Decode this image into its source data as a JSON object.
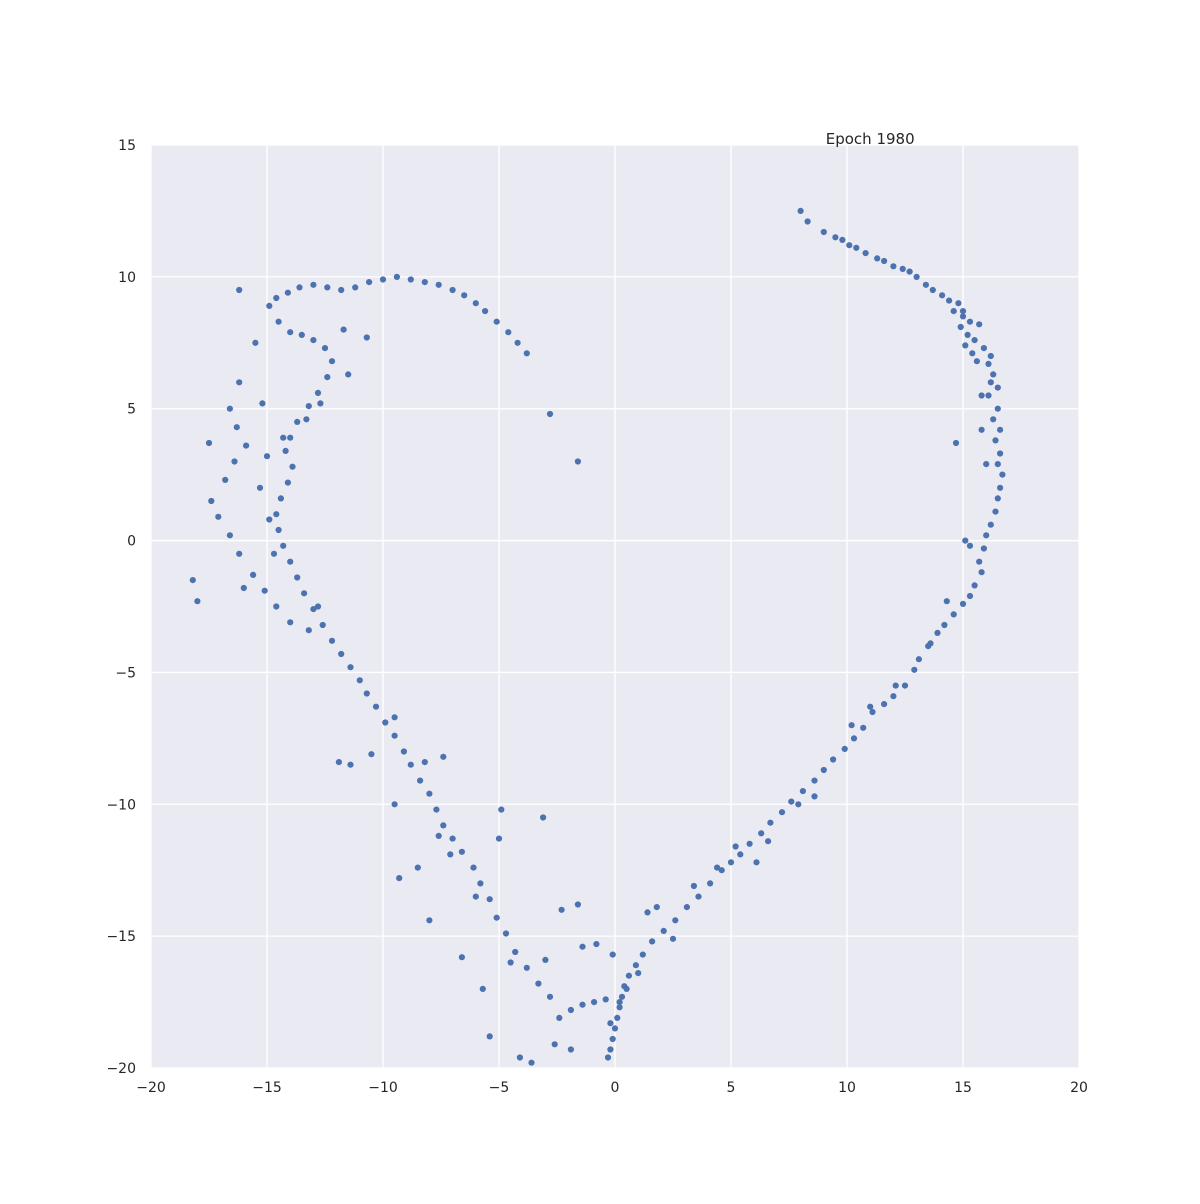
{
  "chart_data": {
    "type": "scatter",
    "title": "Epoch 1980",
    "xlabel": "",
    "ylabel": "",
    "xlim": [
      -20,
      20
    ],
    "ylim": [
      -20,
      15
    ],
    "xticks": [
      -20,
      -15,
      -10,
      -5,
      0,
      5,
      10,
      15,
      20
    ],
    "yticks": [
      -20,
      -15,
      -10,
      -5,
      0,
      5,
      10,
      15
    ],
    "xtick_labels": [
      "−20",
      "−15",
      "−10",
      "−5",
      "0",
      "5",
      "10",
      "15",
      "20"
    ],
    "ytick_labels": [
      "−20",
      "−15",
      "−10",
      "−5",
      "0",
      "5",
      "10",
      "15"
    ],
    "grid": true,
    "background": "#eaeaf2",
    "marker_color": "#4c72b0",
    "series": [
      {
        "points": [
          [
            8.0,
            12.5
          ],
          [
            8.3,
            12.1
          ],
          [
            9.0,
            11.7
          ],
          [
            9.5,
            11.5
          ],
          [
            9.8,
            11.4
          ],
          [
            10.1,
            11.2
          ],
          [
            10.4,
            11.1
          ],
          [
            10.8,
            10.9
          ],
          [
            11.3,
            10.7
          ],
          [
            11.6,
            10.6
          ],
          [
            12.0,
            10.4
          ],
          [
            12.4,
            10.3
          ],
          [
            12.7,
            10.2
          ],
          [
            13.0,
            10.0
          ],
          [
            13.4,
            9.7
          ],
          [
            13.7,
            9.5
          ],
          [
            14.1,
            9.3
          ],
          [
            14.4,
            9.1
          ],
          [
            14.8,
            9.0
          ],
          [
            14.6,
            8.7
          ],
          [
            15.0,
            8.5
          ],
          [
            15.3,
            8.3
          ],
          [
            15.7,
            8.2
          ],
          [
            14.9,
            8.1
          ],
          [
            15.2,
            7.8
          ],
          [
            15.5,
            7.6
          ],
          [
            15.9,
            7.3
          ],
          [
            16.2,
            7.0
          ],
          [
            15.4,
            7.1
          ],
          [
            16.1,
            6.7
          ],
          [
            16.3,
            6.3
          ],
          [
            16.5,
            5.8
          ],
          [
            16.1,
            5.5
          ],
          [
            16.5,
            5.0
          ],
          [
            16.3,
            4.6
          ],
          [
            16.6,
            4.2
          ],
          [
            16.4,
            3.8
          ],
          [
            16.6,
            3.3
          ],
          [
            16.5,
            2.9
          ],
          [
            16.7,
            2.5
          ],
          [
            16.6,
            2.0
          ],
          [
            16.5,
            1.6
          ],
          [
            16.4,
            1.1
          ],
          [
            16.2,
            0.6
          ],
          [
            16.0,
            0.2
          ],
          [
            15.9,
            -0.3
          ],
          [
            15.7,
            -0.8
          ],
          [
            15.8,
            -1.2
          ],
          [
            15.5,
            -1.7
          ],
          [
            15.3,
            -2.1
          ],
          [
            15.0,
            -2.4
          ],
          [
            14.6,
            -2.8
          ],
          [
            14.2,
            -3.2
          ],
          [
            13.9,
            -3.5
          ],
          [
            13.5,
            -4.0
          ],
          [
            13.1,
            -4.5
          ],
          [
            12.9,
            -4.9
          ],
          [
            12.5,
            -5.5
          ],
          [
            12.0,
            -5.9
          ],
          [
            11.6,
            -6.2
          ],
          [
            11.1,
            -6.5
          ],
          [
            10.7,
            -7.1
          ],
          [
            10.3,
            -7.5
          ],
          [
            9.9,
            -7.9
          ],
          [
            9.4,
            -8.3
          ],
          [
            9.0,
            -8.7
          ],
          [
            8.6,
            -9.1
          ],
          [
            8.1,
            -9.5
          ],
          [
            7.6,
            -9.9
          ],
          [
            7.2,
            -10.3
          ],
          [
            6.7,
            -10.7
          ],
          [
            6.3,
            -11.1
          ],
          [
            5.8,
            -11.5
          ],
          [
            5.4,
            -11.9
          ],
          [
            5.0,
            -12.2
          ],
          [
            4.6,
            -12.5
          ],
          [
            4.1,
            -13.0
          ],
          [
            3.6,
            -13.5
          ],
          [
            3.1,
            -13.9
          ],
          [
            2.6,
            -14.4
          ],
          [
            2.1,
            -14.8
          ],
          [
            1.6,
            -15.2
          ],
          [
            1.2,
            -15.7
          ],
          [
            0.9,
            -16.1
          ],
          [
            0.6,
            -16.5
          ],
          [
            0.4,
            -16.9
          ],
          [
            0.3,
            -17.3
          ],
          [
            0.2,
            -17.7
          ],
          [
            0.1,
            -18.1
          ],
          [
            0.0,
            -18.5
          ],
          [
            -0.1,
            -18.9
          ],
          [
            -0.2,
            -19.3
          ],
          [
            -0.3,
            -19.6
          ],
          [
            0.5,
            -17.0
          ],
          [
            0.2,
            -17.5
          ],
          [
            -0.2,
            -18.3
          ],
          [
            -0.4,
            -17.4
          ],
          [
            -0.9,
            -17.5
          ],
          [
            -1.4,
            -17.6
          ],
          [
            -1.9,
            -17.8
          ],
          [
            -2.4,
            -18.1
          ],
          [
            -2.8,
            -17.3
          ],
          [
            -3.3,
            -16.8
          ],
          [
            -3.8,
            -16.2
          ],
          [
            -4.3,
            -15.6
          ],
          [
            -4.7,
            -14.9
          ],
          [
            -5.1,
            -14.3
          ],
          [
            -5.4,
            -13.6
          ],
          [
            -5.8,
            -13.0
          ],
          [
            -6.1,
            -12.4
          ],
          [
            -6.6,
            -11.8
          ],
          [
            -7.0,
            -11.3
          ],
          [
            -7.4,
            -10.8
          ],
          [
            -7.7,
            -10.2
          ],
          [
            -8.0,
            -9.6
          ],
          [
            -8.4,
            -9.1
          ],
          [
            -8.8,
            -8.5
          ],
          [
            -9.1,
            -8.0
          ],
          [
            -9.5,
            -7.4
          ],
          [
            -9.9,
            -6.9
          ],
          [
            -10.3,
            -6.3
          ],
          [
            -10.7,
            -5.8
          ],
          [
            -11.0,
            -5.3
          ],
          [
            -11.4,
            -4.8
          ],
          [
            -11.8,
            -4.3
          ],
          [
            -12.2,
            -3.8
          ],
          [
            -12.6,
            -3.2
          ],
          [
            -13.0,
            -2.6
          ],
          [
            -13.4,
            -2.0
          ],
          [
            -13.7,
            -1.4
          ],
          [
            -14.0,
            -0.8
          ],
          [
            -14.3,
            -0.2
          ],
          [
            -14.5,
            0.4
          ],
          [
            -14.6,
            1.0
          ],
          [
            -14.4,
            1.6
          ],
          [
            -14.1,
            2.2
          ],
          [
            -13.9,
            2.8
          ],
          [
            -14.2,
            3.4
          ],
          [
            -14.0,
            3.9
          ],
          [
            -13.7,
            4.5
          ],
          [
            -13.2,
            5.1
          ],
          [
            -12.8,
            5.6
          ],
          [
            -12.4,
            6.2
          ],
          [
            -12.2,
            6.8
          ],
          [
            -12.5,
            7.3
          ],
          [
            -13.0,
            7.6
          ],
          [
            -13.5,
            7.8
          ],
          [
            -14.0,
            7.9
          ],
          [
            -14.5,
            8.3
          ],
          [
            -14.9,
            8.9
          ],
          [
            -14.6,
            9.2
          ],
          [
            -14.1,
            9.4
          ],
          [
            -13.6,
            9.6
          ],
          [
            -13.0,
            9.7
          ],
          [
            -12.4,
            9.6
          ],
          [
            -11.8,
            9.5
          ],
          [
            -11.2,
            9.6
          ],
          [
            -10.6,
            9.8
          ],
          [
            -10.0,
            9.9
          ],
          [
            -9.4,
            10.0
          ],
          [
            -8.8,
            9.9
          ],
          [
            -8.2,
            9.8
          ],
          [
            -7.6,
            9.7
          ],
          [
            -7.0,
            9.5
          ],
          [
            -6.5,
            9.3
          ],
          [
            -6.0,
            9.0
          ],
          [
            -5.6,
            8.7
          ],
          [
            -5.1,
            8.3
          ],
          [
            -4.6,
            7.9
          ],
          [
            -4.2,
            7.5
          ],
          [
            -3.8,
            7.1
          ],
          [
            -2.8,
            4.8
          ],
          [
            -1.6,
            3.0
          ],
          [
            -11.7,
            8.0
          ],
          [
            -10.7,
            7.7
          ],
          [
            -11.5,
            6.3
          ],
          [
            -12.7,
            5.2
          ],
          [
            -13.3,
            4.6
          ],
          [
            -15.2,
            5.2
          ],
          [
            -16.2,
            6.0
          ],
          [
            -16.6,
            5.0
          ],
          [
            -16.3,
            4.3
          ],
          [
            -15.9,
            3.6
          ],
          [
            -16.4,
            3.0
          ],
          [
            -16.8,
            2.3
          ],
          [
            -17.4,
            1.5
          ],
          [
            -17.1,
            0.9
          ],
          [
            -16.6,
            0.2
          ],
          [
            -16.2,
            -0.5
          ],
          [
            -15.6,
            -1.3
          ],
          [
            -15.1,
            -1.9
          ],
          [
            -14.7,
            -0.5
          ],
          [
            -14.9,
            0.8
          ],
          [
            -15.3,
            2.0
          ],
          [
            -15.0,
            3.2
          ],
          [
            -14.3,
            3.9
          ],
          [
            -17.5,
            3.7
          ],
          [
            -16.2,
            9.5
          ],
          [
            -15.5,
            7.5
          ],
          [
            -18.2,
            -1.5
          ],
          [
            -18.0,
            -2.3
          ],
          [
            -16.0,
            -1.8
          ],
          [
            -14.6,
            -2.5
          ],
          [
            -14.0,
            -3.1
          ],
          [
            -13.2,
            -3.4
          ],
          [
            -12.8,
            -2.5
          ],
          [
            -11.9,
            -8.4
          ],
          [
            -11.4,
            -8.5
          ],
          [
            -10.5,
            -8.1
          ],
          [
            -9.5,
            -10.0
          ],
          [
            -9.3,
            -12.8
          ],
          [
            -8.0,
            -14.4
          ],
          [
            -6.6,
            -15.8
          ],
          [
            -5.7,
            -17.0
          ],
          [
            -5.4,
            -18.8
          ],
          [
            -4.1,
            -19.6
          ],
          [
            -3.6,
            -19.8
          ],
          [
            -2.6,
            -19.1
          ],
          [
            -1.9,
            -19.3
          ],
          [
            -4.9,
            -10.2
          ],
          [
            -5.0,
            -11.3
          ],
          [
            -3.1,
            -10.5
          ],
          [
            -2.3,
            -14.0
          ],
          [
            -1.6,
            -13.8
          ],
          [
            -7.4,
            -8.2
          ],
          [
            -7.6,
            -11.2
          ],
          [
            -8.5,
            -12.4
          ],
          [
            -9.5,
            -6.7
          ],
          [
            -8.2,
            -8.4
          ],
          [
            -7.1,
            -11.9
          ],
          [
            -6.0,
            -13.5
          ],
          [
            -4.5,
            -16.0
          ],
          [
            -3.0,
            -15.9
          ],
          [
            -1.4,
            -15.4
          ],
          [
            -0.8,
            -15.3
          ],
          [
            -0.1,
            -15.7
          ],
          [
            1.0,
            -16.4
          ],
          [
            1.4,
            -14.1
          ],
          [
            1.8,
            -13.9
          ],
          [
            2.5,
            -15.1
          ],
          [
            3.4,
            -13.1
          ],
          [
            4.4,
            -12.4
          ],
          [
            5.2,
            -11.6
          ],
          [
            6.1,
            -12.2
          ],
          [
            6.6,
            -11.4
          ],
          [
            7.9,
            -10.0
          ],
          [
            8.6,
            -9.7
          ],
          [
            10.2,
            -7.0
          ],
          [
            11.0,
            -6.3
          ],
          [
            12.1,
            -5.5
          ],
          [
            13.6,
            -3.9
          ],
          [
            14.3,
            -2.3
          ],
          [
            15.1,
            0.0
          ],
          [
            15.3,
            -0.2
          ],
          [
            14.7,
            3.7
          ],
          [
            16.0,
            2.9
          ],
          [
            15.8,
            4.2
          ],
          [
            15.8,
            5.5
          ],
          [
            16.2,
            6.0
          ],
          [
            15.6,
            6.8
          ],
          [
            15.1,
            7.4
          ],
          [
            15.0,
            8.7
          ]
        ]
      }
    ]
  }
}
